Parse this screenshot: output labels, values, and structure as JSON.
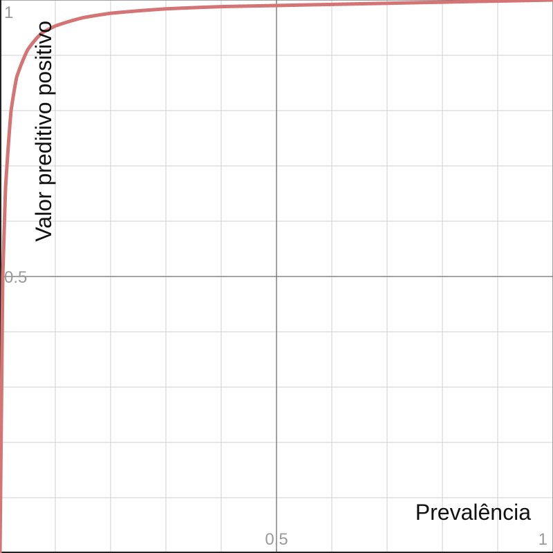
{
  "chart_data": {
    "type": "line",
    "title": "",
    "xlabel": "Prevalência",
    "ylabel": "Valor preditivo positivo",
    "xlim": [
      0,
      1
    ],
    "ylim": [
      0,
      1
    ],
    "grid": true,
    "minor_grid_step": 0.1,
    "x_ticks": [
      {
        "value": 0.5,
        "label": "0.5"
      },
      {
        "value": 1,
        "label": "1"
      }
    ],
    "y_ticks": [
      {
        "value": 0.5,
        "label": "0.5"
      },
      {
        "value": 1,
        "label": "1"
      }
    ],
    "series": [
      {
        "color": "#d47474",
        "x": [
          0,
          0.005,
          0.01,
          0.02,
          0.03,
          0.05,
          0.075,
          0.1,
          0.15,
          0.2,
          0.3,
          0.4,
          0.5,
          0.6,
          0.7,
          0.8,
          0.9,
          1
        ],
        "y": [
          0,
          0.5,
          0.66,
          0.8,
          0.86,
          0.91,
          0.94,
          0.953,
          0.968,
          0.976,
          0.984,
          0.988,
          0.99,
          0.992,
          0.994,
          0.996,
          0.998,
          1
        ]
      }
    ]
  }
}
